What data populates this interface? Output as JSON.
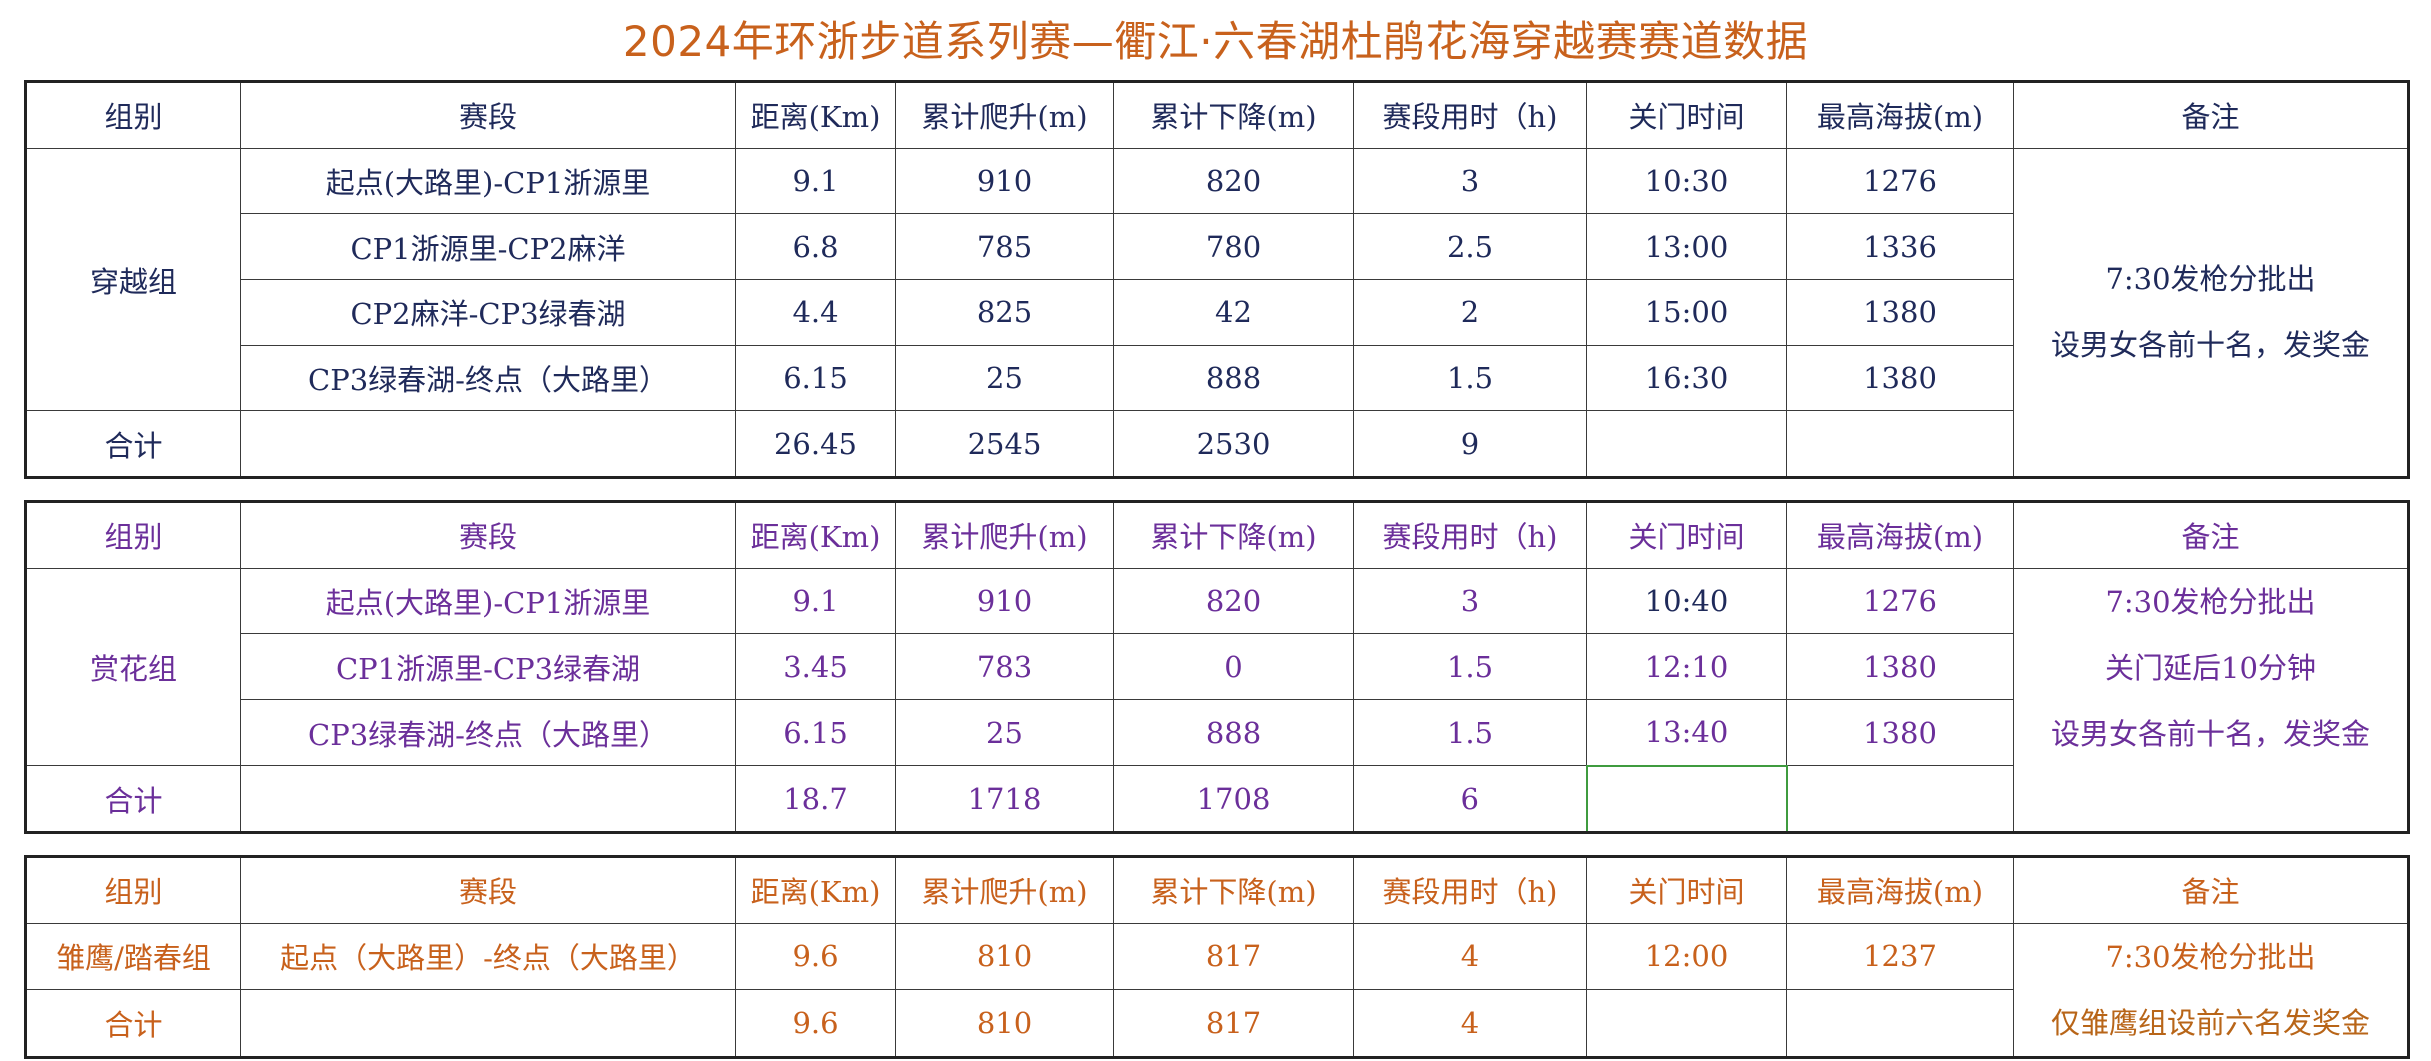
{
  "title": "2024年环浙步道系列赛—衢江·六春湖杜鹃花海穿越赛赛道数据",
  "headers": [
    "组别",
    "赛段",
    "距离(Km)",
    "累计爬升(m)",
    "累计下降(m)",
    "赛段用时（h)",
    "关门时间",
    "最高海拔(m)",
    "备注"
  ],
  "total_label": "合计",
  "groups": [
    {
      "name": "穿越组",
      "color": "#1f2a5a",
      "rows": [
        {
          "segment": "起点(大路里)-CP1浙源里",
          "distance": "9.1",
          "climb": "910",
          "descent": "820",
          "hours": "3",
          "close": "10:30",
          "altitude": "1276"
        },
        {
          "segment": "CP1浙源里-CP2麻洋",
          "distance": "6.8",
          "climb": "785",
          "descent": "780",
          "hours": "2.5",
          "close": "13:00",
          "altitude": "1336"
        },
        {
          "segment": "CP2麻洋-CP3绿春湖",
          "distance": "4.4",
          "climb": "825",
          "descent": "42",
          "hours": "2",
          "close": "15:00",
          "altitude": "1380"
        },
        {
          "segment": "CP3绿春湖-终点（大路里）",
          "distance": "6.15",
          "climb": "25",
          "descent": "888",
          "hours": "1.5",
          "close": "16:30",
          "altitude": "1380"
        }
      ],
      "total": {
        "distance": "26.45",
        "climb": "2545",
        "descent": "2530",
        "hours": "9"
      },
      "notes": [
        "7:30发枪分批出",
        "设男女各前十名，发奖金"
      ]
    },
    {
      "name": "赏花组",
      "color": "#6b2f9a",
      "rows": [
        {
          "segment": "起点(大路里)-CP1浙源里",
          "distance": "9.1",
          "climb": "910",
          "descent": "820",
          "hours": "3",
          "close": "10:40",
          "altitude": "1276"
        },
        {
          "segment": "CP1浙源里-CP3绿春湖",
          "distance": "3.45",
          "climb": "783",
          "descent": "0",
          "hours": "1.5",
          "close": "12:10",
          "altitude": "1380"
        },
        {
          "segment": "CP3绿春湖-终点（大路里）",
          "distance": "6.15",
          "climb": "25",
          "descent": "888",
          "hours": "1.5",
          "close": "13:40",
          "altitude": "1380"
        }
      ],
      "total": {
        "distance": "18.7",
        "climb": "1718",
        "descent": "1708",
        "hours": "6"
      },
      "notes": [
        "7:30发枪分批出",
        "关门延后10分钟",
        "设男女各前十名，发奖金"
      ]
    },
    {
      "name": "雏鹰/踏春组",
      "color": "#c8611c",
      "rows": [
        {
          "segment": "起点（大路里）-终点（大路里）",
          "distance": "9.6",
          "climb": "810",
          "descent": "817",
          "hours": "4",
          "close": "12:00",
          "altitude": "1237"
        }
      ],
      "total": {
        "distance": "9.6",
        "climb": "810",
        "descent": "817",
        "hours": "4"
      },
      "notes": [
        "7:30发枪分批出",
        "仅雏鹰组设前六名发奖金"
      ]
    }
  ]
}
